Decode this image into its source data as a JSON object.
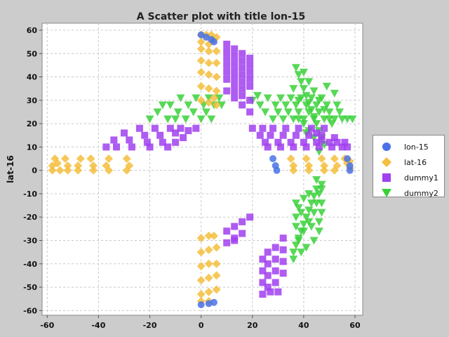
{
  "chart_data": {
    "type": "scatter",
    "title": "A Scatter plot with title lon-15",
    "xlabel": "",
    "ylabel": "lat-16",
    "xlim": [
      -62,
      63
    ],
    "ylim": [
      -62,
      63
    ],
    "xticks": [
      -60,
      -40,
      -20,
      0,
      20,
      40,
      60
    ],
    "yticks": [
      60,
      50,
      40,
      30,
      20,
      10,
      0,
      -10,
      -20,
      -30,
      -40,
      -50,
      -60
    ],
    "grid": true,
    "legend_position": "right",
    "series": [
      {
        "name": "lon-15",
        "color": "#4a72e8",
        "marker": "circle",
        "points": [
          [
            0,
            -57.5
          ],
          [
            3,
            -57
          ],
          [
            5,
            -56.5
          ],
          [
            28,
            5
          ],
          [
            29,
            2
          ],
          [
            29.5,
            0
          ],
          [
            57,
            5
          ],
          [
            58,
            2
          ],
          [
            58,
            0
          ],
          [
            0,
            58
          ],
          [
            2,
            57
          ],
          [
            4,
            56
          ],
          [
            5,
            55
          ]
        ]
      },
      {
        "name": "lat-16",
        "color": "#f5be3c",
        "marker": "diamond",
        "points": [
          [
            0,
            58
          ],
          [
            2,
            58
          ],
          [
            4,
            58
          ],
          [
            6,
            57
          ],
          [
            0,
            55
          ],
          [
            3,
            54
          ],
          [
            5,
            56
          ],
          [
            0,
            52
          ],
          [
            3,
            51
          ],
          [
            6,
            51
          ],
          [
            0,
            47
          ],
          [
            3,
            46
          ],
          [
            6,
            46
          ],
          [
            0,
            42
          ],
          [
            3,
            41
          ],
          [
            6,
            40
          ],
          [
            0,
            36
          ],
          [
            3,
            35
          ],
          [
            6,
            34
          ],
          [
            0,
            30
          ],
          [
            3,
            29
          ],
          [
            6,
            28
          ],
          [
            5,
            31
          ],
          [
            -58,
            2
          ],
          [
            -58,
            0
          ],
          [
            -57,
            5
          ],
          [
            -56,
            3
          ],
          [
            -55,
            0
          ],
          [
            -53,
            5
          ],
          [
            -52,
            2
          ],
          [
            -52,
            0
          ],
          [
            -47,
            5
          ],
          [
            -48,
            2
          ],
          [
            -48,
            0
          ],
          [
            -43,
            5
          ],
          [
            -42,
            2
          ],
          [
            -42,
            0
          ],
          [
            -36,
            5
          ],
          [
            -37,
            2
          ],
          [
            -36,
            0
          ],
          [
            -29,
            5
          ],
          [
            -28,
            2
          ],
          [
            -29,
            0
          ],
          [
            35,
            5
          ],
          [
            36,
            2
          ],
          [
            36,
            0
          ],
          [
            41,
            5
          ],
          [
            42,
            2
          ],
          [
            42,
            0
          ],
          [
            47,
            5
          ],
          [
            48,
            2
          ],
          [
            48,
            0
          ],
          [
            52,
            5
          ],
          [
            53,
            2
          ],
          [
            52,
            0
          ],
          [
            56,
            5
          ],
          [
            57,
            3
          ],
          [
            58,
            1
          ],
          [
            58,
            4
          ],
          [
            0,
            -29
          ],
          [
            3,
            -28
          ],
          [
            5,
            -28
          ],
          [
            0,
            -35
          ],
          [
            3,
            -34
          ],
          [
            6,
            -33
          ],
          [
            0,
            -41
          ],
          [
            3,
            -40
          ],
          [
            6,
            -40
          ],
          [
            0,
            -47
          ],
          [
            3,
            -46
          ],
          [
            6,
            -45
          ],
          [
            0,
            -53
          ],
          [
            3,
            -52
          ],
          [
            6,
            -51
          ],
          [
            0,
            -56
          ],
          [
            3,
            -56
          ]
        ]
      },
      {
        "name": "dummy1",
        "color": "#a040f0",
        "marker": "square",
        "points": [
          [
            -37,
            10
          ],
          [
            -34,
            13
          ],
          [
            -33,
            10
          ],
          [
            -30,
            16
          ],
          [
            -28,
            13
          ],
          [
            -27,
            10
          ],
          [
            -24,
            18
          ],
          [
            -22,
            15
          ],
          [
            -21,
            12
          ],
          [
            -20,
            10
          ],
          [
            -18,
            18
          ],
          [
            -16,
            15
          ],
          [
            -15,
            12
          ],
          [
            -13,
            10
          ],
          [
            -12,
            18
          ],
          [
            -10,
            16
          ],
          [
            -8,
            18
          ],
          [
            -10,
            12
          ],
          [
            -7,
            14
          ],
          [
            -5,
            17
          ],
          [
            -2,
            18
          ],
          [
            10,
            54
          ],
          [
            10,
            51
          ],
          [
            10,
            48
          ],
          [
            10,
            45
          ],
          [
            10,
            42
          ],
          [
            10,
            39
          ],
          [
            13,
            52
          ],
          [
            13,
            49
          ],
          [
            13,
            46
          ],
          [
            13,
            43
          ],
          [
            13,
            40
          ],
          [
            13,
            37
          ],
          [
            13,
            34
          ],
          [
            16,
            50
          ],
          [
            16,
            47
          ],
          [
            16,
            44
          ],
          [
            16,
            41
          ],
          [
            16,
            38
          ],
          [
            16,
            35
          ],
          [
            16,
            32
          ],
          [
            19,
            48
          ],
          [
            19,
            45
          ],
          [
            19,
            42
          ],
          [
            19,
            39
          ],
          [
            19,
            36
          ],
          [
            19,
            30
          ],
          [
            19,
            25
          ],
          [
            10,
            34
          ],
          [
            13,
            31
          ],
          [
            16,
            28
          ],
          [
            20,
            18
          ],
          [
            23,
            15
          ],
          [
            24,
            18
          ],
          [
            25,
            12
          ],
          [
            26,
            10
          ],
          [
            27,
            15
          ],
          [
            28,
            18
          ],
          [
            30,
            12
          ],
          [
            31,
            10
          ],
          [
            32,
            15
          ],
          [
            33,
            18
          ],
          [
            35,
            12
          ],
          [
            36,
            10
          ],
          [
            37,
            15
          ],
          [
            38,
            18
          ],
          [
            40,
            12
          ],
          [
            41,
            10
          ],
          [
            42,
            15
          ],
          [
            43,
            18
          ],
          [
            45,
            12
          ],
          [
            46,
            10
          ],
          [
            47,
            15
          ],
          [
            48,
            18
          ],
          [
            50,
            12
          ],
          [
            51,
            10
          ],
          [
            52,
            14
          ],
          [
            53,
            12
          ],
          [
            55,
            10
          ],
          [
            56,
            12
          ],
          [
            57,
            10
          ],
          [
            47,
            13
          ],
          [
            45,
            16
          ],
          [
            10,
            -26
          ],
          [
            13,
            -24
          ],
          [
            13,
            -29
          ],
          [
            16,
            -22
          ],
          [
            16,
            -27
          ],
          [
            19,
            -20
          ],
          [
            10,
            -31
          ],
          [
            13,
            -30
          ],
          [
            24,
            -38
          ],
          [
            24,
            -43
          ],
          [
            24,
            -48
          ],
          [
            24,
            -53
          ],
          [
            26,
            -35
          ],
          [
            26,
            -40
          ],
          [
            26,
            -45
          ],
          [
            26,
            -50
          ],
          [
            29,
            -33
          ],
          [
            29,
            -38
          ],
          [
            29,
            -43
          ],
          [
            29,
            -48
          ],
          [
            32,
            -29
          ],
          [
            32,
            -34
          ],
          [
            32,
            -39
          ],
          [
            32,
            -44
          ],
          [
            27,
            -52
          ],
          [
            30,
            -52
          ]
        ]
      },
      {
        "name": "dummy2",
        "color": "#39d139",
        "marker": "triangle-down",
        "points": [
          [
            -20,
            22
          ],
          [
            -17,
            25
          ],
          [
            -13,
            22
          ],
          [
            -12,
            28
          ],
          [
            -9,
            25
          ],
          [
            -8,
            31
          ],
          [
            -6,
            22
          ],
          [
            -5,
            28
          ],
          [
            -3,
            25
          ],
          [
            -2,
            31
          ],
          [
            0,
            22
          ],
          [
            1,
            28
          ],
          [
            2,
            25
          ],
          [
            3,
            31
          ],
          [
            4,
            22
          ],
          [
            5,
            28
          ],
          [
            7,
            31
          ],
          [
            8,
            28
          ],
          [
            -10,
            22
          ],
          [
            -15,
            28
          ],
          [
            20,
            30
          ],
          [
            22,
            32
          ],
          [
            23,
            28
          ],
          [
            25,
            25
          ],
          [
            26,
            31
          ],
          [
            28,
            22
          ],
          [
            29,
            28
          ],
          [
            30,
            25
          ],
          [
            31,
            31
          ],
          [
            32,
            22
          ],
          [
            33,
            28
          ],
          [
            34,
            25
          ],
          [
            35,
            31
          ],
          [
            36,
            22
          ],
          [
            37,
            28
          ],
          [
            38,
            25
          ],
          [
            39,
            31
          ],
          [
            40,
            22
          ],
          [
            41,
            28
          ],
          [
            42,
            25
          ],
          [
            43,
            31
          ],
          [
            44,
            22
          ],
          [
            45,
            28
          ],
          [
            46,
            25
          ],
          [
            47,
            31
          ],
          [
            48,
            22
          ],
          [
            49,
            28
          ],
          [
            50,
            25
          ],
          [
            51,
            20
          ],
          [
            52,
            22
          ],
          [
            53,
            28
          ],
          [
            54,
            25
          ],
          [
            55,
            22
          ],
          [
            57,
            22
          ],
          [
            59,
            22
          ],
          [
            37,
            44
          ],
          [
            38,
            41
          ],
          [
            39,
            38
          ],
          [
            40,
            35
          ],
          [
            41,
            32
          ],
          [
            42,
            29
          ],
          [
            43,
            26
          ],
          [
            44,
            23
          ],
          [
            45,
            20
          ],
          [
            46,
            17
          ],
          [
            47,
            14
          ],
          [
            48,
            11
          ],
          [
            46,
            8
          ],
          [
            40,
            42
          ],
          [
            42,
            38
          ],
          [
            44,
            34
          ],
          [
            46,
            30
          ],
          [
            48,
            26
          ],
          [
            50,
            22
          ],
          [
            52,
            33
          ],
          [
            49,
            36
          ],
          [
            38,
            30
          ],
          [
            40,
            20
          ],
          [
            42,
            17
          ],
          [
            44,
            14
          ],
          [
            38,
            22
          ],
          [
            36,
            35
          ],
          [
            41,
            16
          ],
          [
            45,
            -8
          ],
          [
            44,
            -11
          ],
          [
            43,
            -14
          ],
          [
            42,
            -17
          ],
          [
            41,
            -20
          ],
          [
            40,
            -23
          ],
          [
            39,
            -26
          ],
          [
            38,
            -29
          ],
          [
            37,
            -32
          ],
          [
            36,
            -35
          ],
          [
            36,
            -38
          ],
          [
            47,
            -6
          ],
          [
            46,
            -10
          ],
          [
            45,
            -14
          ],
          [
            44,
            -18
          ],
          [
            42,
            -22
          ],
          [
            40,
            -26
          ],
          [
            38,
            -30
          ],
          [
            37,
            -20
          ],
          [
            37,
            -24
          ],
          [
            38,
            -16
          ],
          [
            40,
            -12
          ],
          [
            42,
            -10
          ],
          [
            46,
            -26
          ],
          [
            46,
            -22
          ],
          [
            44,
            -30
          ],
          [
            41,
            -33
          ],
          [
            39,
            -35
          ],
          [
            45,
            -4
          ],
          [
            47,
            -8
          ],
          [
            37,
            -14
          ],
          [
            39,
            -18
          ],
          [
            43,
            -24
          ],
          [
            47,
            -18
          ],
          [
            47,
            -14
          ]
        ]
      }
    ]
  }
}
